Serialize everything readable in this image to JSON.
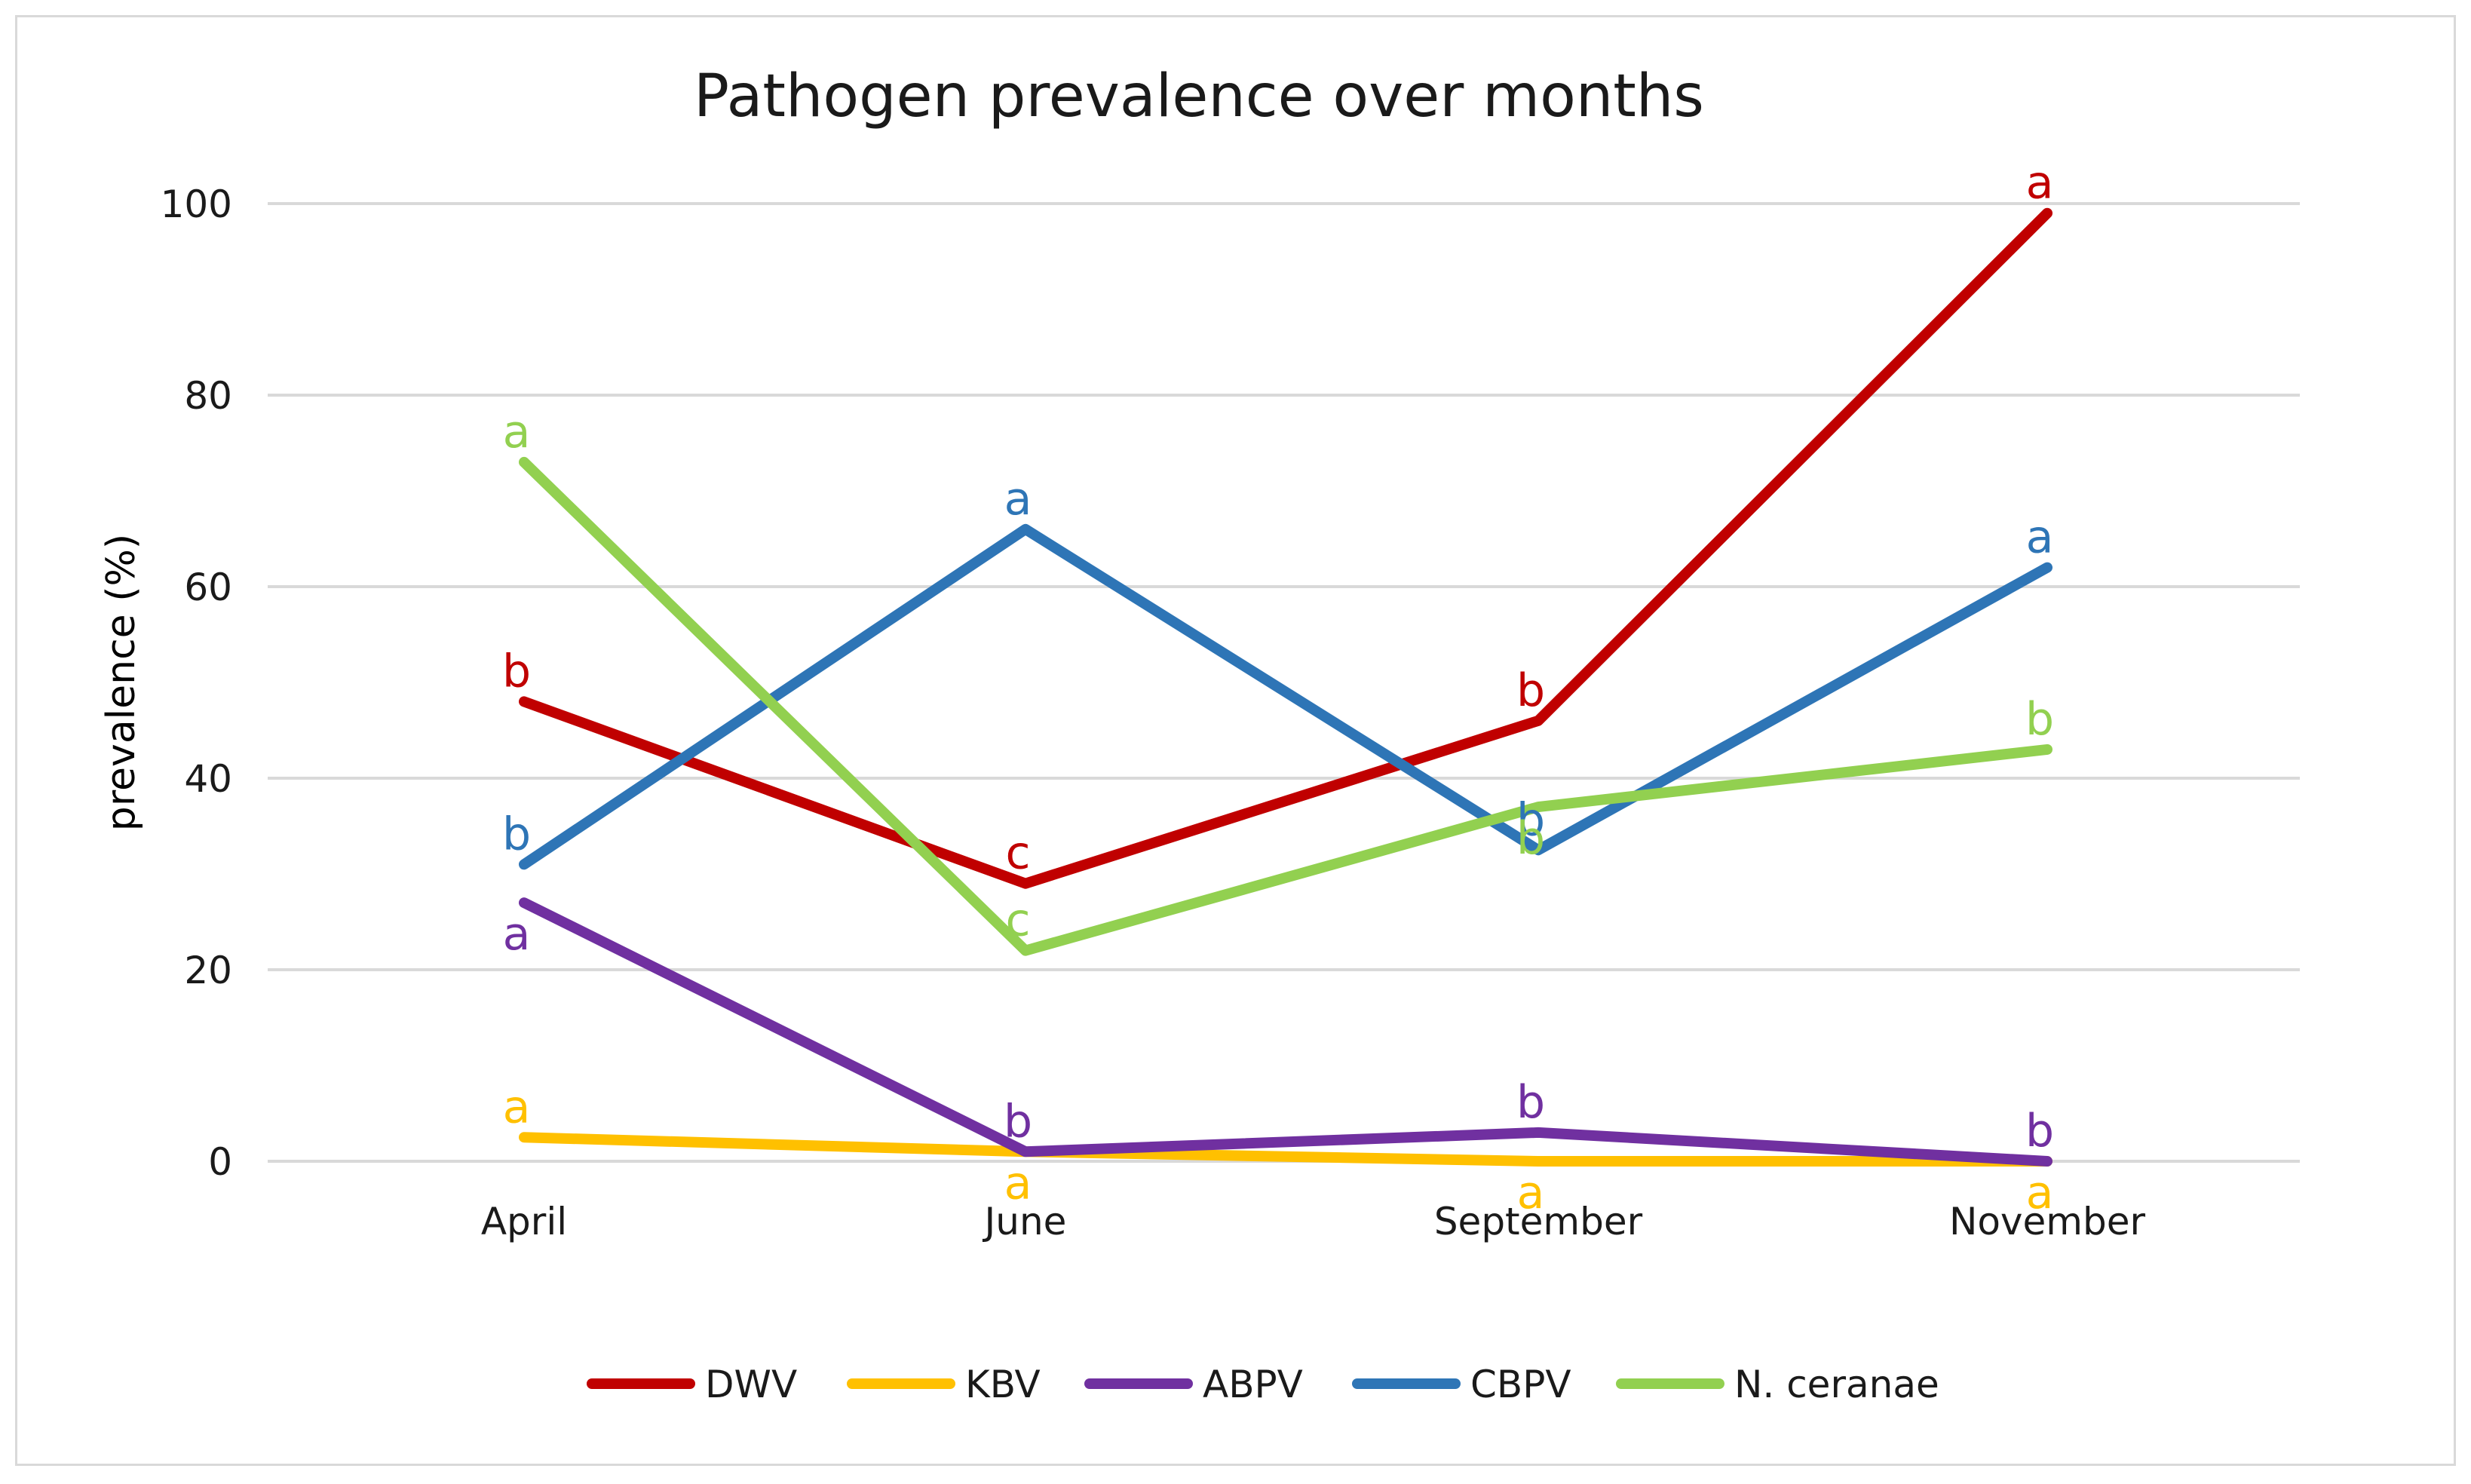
{
  "chart_data": {
    "type": "line",
    "title": "Pathogen prevalence over months",
    "xlabel": "",
    "ylabel": "prevalence (%)",
    "ylim": [
      0,
      100
    ],
    "yticks": [
      0,
      20,
      40,
      60,
      80,
      100
    ],
    "grid": true,
    "legend_position": "bottom",
    "categories": [
      "April",
      "June",
      "September",
      "November"
    ],
    "series": [
      {
        "name": "DWV",
        "color": "#c00000",
        "values": [
          48,
          29,
          46,
          99
        ],
        "labels": [
          "b",
          "c",
          "b",
          "a"
        ],
        "label_positions": [
          "above",
          "above",
          "above",
          "above"
        ]
      },
      {
        "name": "KBV",
        "color": "#ffc000",
        "values": [
          2.5,
          1,
          0,
          0
        ],
        "labels": [
          "a",
          "a",
          "a",
          "a"
        ],
        "label_positions": [
          "above",
          "below",
          "below",
          "below"
        ]
      },
      {
        "name": "ABPV",
        "color": "#7030a0",
        "values": [
          27,
          1,
          3,
          0
        ],
        "labels": [
          "a",
          "b",
          "b",
          "b"
        ],
        "label_positions": [
          "below",
          "above",
          "above",
          "above"
        ]
      },
      {
        "name": "CBPV",
        "color": "#2e75b6",
        "values": [
          31,
          66,
          32.5,
          62
        ],
        "labels": [
          "b",
          "a",
          "b",
          "a"
        ],
        "label_positions": [
          "above",
          "above",
          "above",
          "above"
        ]
      },
      {
        "name": "N. ceranae",
        "color": "#92d050",
        "values": [
          73,
          22,
          37,
          43
        ],
        "labels": [
          "a",
          "c",
          "b",
          "b"
        ],
        "label_positions": [
          "above",
          "above",
          "below",
          "above"
        ]
      }
    ]
  }
}
